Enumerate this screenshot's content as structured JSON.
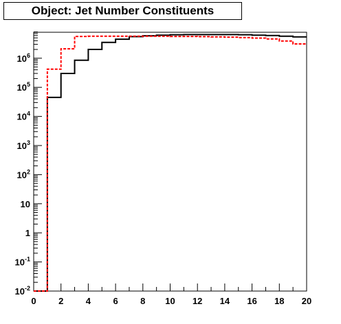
{
  "title": "Object: Jet Number Constituents",
  "chart_data": {
    "type": "line",
    "title": "Object: Jet Number Constituents",
    "xlabel": "",
    "ylabel": "",
    "xlim": [
      0,
      20
    ],
    "ylim": [
      0.01,
      8000000
    ],
    "yscale": "log",
    "grid": false,
    "x_tick_labels": [
      "0",
      "2",
      "4",
      "6",
      "8",
      "10",
      "12",
      "14",
      "16",
      "18",
      "20"
    ],
    "y_tick_labels": [
      {
        "base": "10",
        "exp": "-2"
      },
      {
        "base": "10",
        "exp": "-1"
      },
      {
        "base": "1",
        "exp": ""
      },
      {
        "base": "10",
        "exp": ""
      },
      {
        "base": "10",
        "exp": "2"
      },
      {
        "base": "10",
        "exp": "3"
      },
      {
        "base": "10",
        "exp": "4"
      },
      {
        "base": "10",
        "exp": "5"
      },
      {
        "base": "10",
        "exp": "6"
      }
    ],
    "bin_edges": [
      0,
      1,
      2,
      3,
      4,
      5,
      6,
      7,
      8,
      9,
      10,
      11,
      12,
      13,
      14,
      15,
      16,
      17,
      18,
      19,
      20
    ],
    "series": [
      {
        "style": "solid",
        "color": "#000000",
        "values": [
          0.01,
          45000,
          300000,
          850000,
          2000000,
          3500000,
          4500000,
          5500000,
          5900000,
          6200000,
          6400000,
          6500000,
          6500000,
          6500000,
          6500000,
          6400000,
          6200000,
          6000000,
          5700000,
          5400000
        ]
      },
      {
        "style": "dashed",
        "color": "#ff0000",
        "values": [
          0.01,
          420000,
          2100000,
          5600000,
          5700000,
          5700000,
          5700000,
          5700000,
          5700000,
          5700000,
          5600000,
          5600000,
          5500000,
          5400000,
          5300000,
          5100000,
          4900000,
          4600000,
          3900000,
          3100000
        ]
      }
    ]
  }
}
